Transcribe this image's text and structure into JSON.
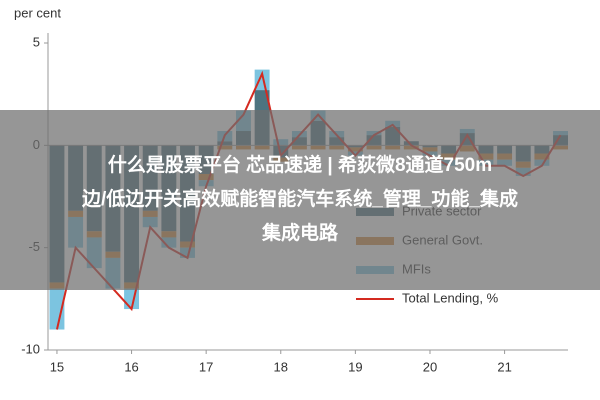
{
  "chart_data": {
    "type": "bar",
    "ylabel": "per cent",
    "x": [
      2015,
      2015.25,
      2015.5,
      2015.75,
      2016,
      2016.25,
      2016.5,
      2016.75,
      2017,
      2017.25,
      2017.5,
      2017.75,
      2018,
      2018.25,
      2018.5,
      2018.75,
      2019,
      2019.25,
      2019.5,
      2019.75,
      2020,
      2020.25,
      2020.5,
      2020.75,
      2021,
      2021.25,
      2021.5,
      2021.75
    ],
    "xlim": [
      2014.88,
      2021.85
    ],
    "xticks": [
      {
        "value": 2015,
        "label": "15"
      },
      {
        "value": 2016,
        "label": "16"
      },
      {
        "value": 2017,
        "label": "17"
      },
      {
        "value": 2018,
        "label": "18"
      },
      {
        "value": 2019,
        "label": "19"
      },
      {
        "value": 2020,
        "label": "20"
      },
      {
        "value": 2021,
        "label": "21"
      }
    ],
    "ylim": [
      -10,
      5
    ],
    "yticks": [
      5,
      0,
      -5,
      -10
    ],
    "series": [
      {
        "name": "Private sector",
        "type": "bar",
        "color": "#4d7480",
        "values": [
          -6.7,
          -3.2,
          -4.2,
          -5.2,
          -6.7,
          -3.2,
          -4.2,
          -4.7,
          -1.4,
          0.2,
          0.7,
          2.7,
          -0.6,
          0.4,
          1.2,
          0.4,
          -0.1,
          0.5,
          0.9,
          0.2,
          -0.1,
          -0.4,
          0.6,
          -0.4,
          -0.4,
          -0.8,
          -0.4,
          0.5
        ]
      },
      {
        "name": "General Govt.",
        "type": "bar",
        "color": "#d4883a",
        "values": [
          -0.3,
          -0.3,
          -0.3,
          -0.3,
          -0.3,
          -0.3,
          -0.3,
          -0.3,
          -0.3,
          -0.2,
          -0.2,
          -0.2,
          -0.2,
          -0.2,
          -0.2,
          -0.2,
          -0.2,
          -0.2,
          -0.2,
          -0.2,
          -0.2,
          -0.3,
          -0.3,
          -0.3,
          -0.3,
          -0.3,
          -0.3,
          -0.2
        ]
      },
      {
        "name": "MFIs",
        "type": "bar",
        "color": "#7cc4e0",
        "values": [
          -2,
          -1.5,
          -1.5,
          -1.5,
          -1,
          -0.5,
          -0.5,
          -0.5,
          -0.3,
          0.5,
          1,
          1,
          0.3,
          0.3,
          0.5,
          0.3,
          -0.2,
          0.2,
          0.3,
          0,
          -0.2,
          -0.3,
          0.2,
          -0.3,
          -0.3,
          -0.4,
          -0.3,
          0.2
        ]
      },
      {
        "name": "Total Lending, %",
        "type": "line",
        "color": "#d42a20",
        "values": [
          -9,
          -5,
          -6,
          -7,
          -8,
          -4,
          -5,
          -5.5,
          -2,
          0.5,
          1.5,
          3.5,
          -0.5,
          0.5,
          1.5,
          0.5,
          -0.5,
          0.5,
          1,
          0,
          -0.5,
          -1,
          0.5,
          -1,
          -1,
          -1.5,
          -1,
          0.5
        ]
      }
    ]
  },
  "overlay": {
    "lines": [
      "什么是股票平台 芯品速递 | 希荻微8通道750m",
      "边/低边开关高效赋能智能汽车系统_管理_功能_集成",
      "集成电路"
    ]
  }
}
